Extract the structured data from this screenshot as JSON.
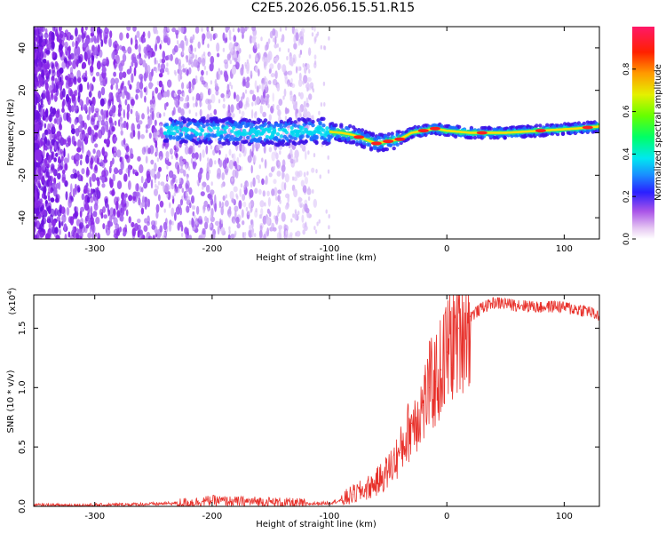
{
  "title": "C2E5.2026.056.15.51.R15",
  "chart_data": [
    {
      "type": "heatmap",
      "name": "spectrogram",
      "xlabel": "Height of straight line (km)",
      "ylabel": "Frequency (Hz)",
      "xlim": [
        -352,
        130
      ],
      "ylim": [
        -50,
        50
      ],
      "xticks": [
        -300,
        -200,
        -100,
        0,
        100
      ],
      "yticks": [
        -40,
        -20,
        0,
        20,
        40
      ],
      "colorbar": {
        "label": "Normalized spectral amplitude",
        "range": [
          0,
          1
        ],
        "ticks": [
          0.0,
          0.2,
          0.4,
          0.6,
          0.8
        ]
      },
      "ridge": {
        "x": [
          -230,
          -200,
          -150,
          -110,
          -90,
          -80,
          -70,
          -60,
          -50,
          -40,
          -30,
          -20,
          -10,
          0,
          20,
          50,
          80,
          110,
          130
        ],
        "freq": [
          1,
          1,
          0,
          1,
          0,
          -1,
          -3,
          -5,
          -4,
          -3,
          0,
          1,
          2,
          1,
          0,
          0,
          1,
          2,
          3
        ]
      }
    },
    {
      "type": "line",
      "name": "snr",
      "xlabel": "Height of straight line (km)",
      "ylabel": "SNR (10 * v/v)",
      "exponent_label": "(x10",
      "exponent_power": "4",
      "exponent_close": ")",
      "xlim": [
        -352,
        130
      ],
      "ylim": [
        0,
        1.78
      ],
      "xticks": [
        -300,
        -200,
        -100,
        0,
        100
      ],
      "yticks": [
        0.0,
        0.5,
        1.0,
        1.5
      ],
      "ytick_labels": [
        "0.0",
        "0.5",
        "1.0",
        "1.5"
      ],
      "series": [
        {
          "name": "SNR",
          "color": "#e8312b",
          "x": [
            -352,
            -300,
            -250,
            -220,
            -200,
            -180,
            -160,
            -140,
            -120,
            -100,
            -90,
            -80,
            -70,
            -60,
            -50,
            -40,
            -30,
            -20,
            -15,
            -10,
            -5,
            0,
            10,
            20,
            30,
            40,
            50,
            60,
            70,
            80,
            90,
            100,
            110,
            120,
            130
          ],
          "y": [
            0.01,
            0.01,
            0.02,
            0.03,
            0.05,
            0.04,
            0.04,
            0.03,
            0.02,
            0.03,
            0.05,
            0.1,
            0.14,
            0.2,
            0.3,
            0.45,
            0.7,
            0.85,
            1.0,
            1.05,
            1.15,
            1.3,
            1.5,
            1.6,
            1.68,
            1.72,
            1.71,
            1.7,
            1.69,
            1.68,
            1.69,
            1.68,
            1.66,
            1.65,
            1.6
          ]
        }
      ]
    }
  ]
}
